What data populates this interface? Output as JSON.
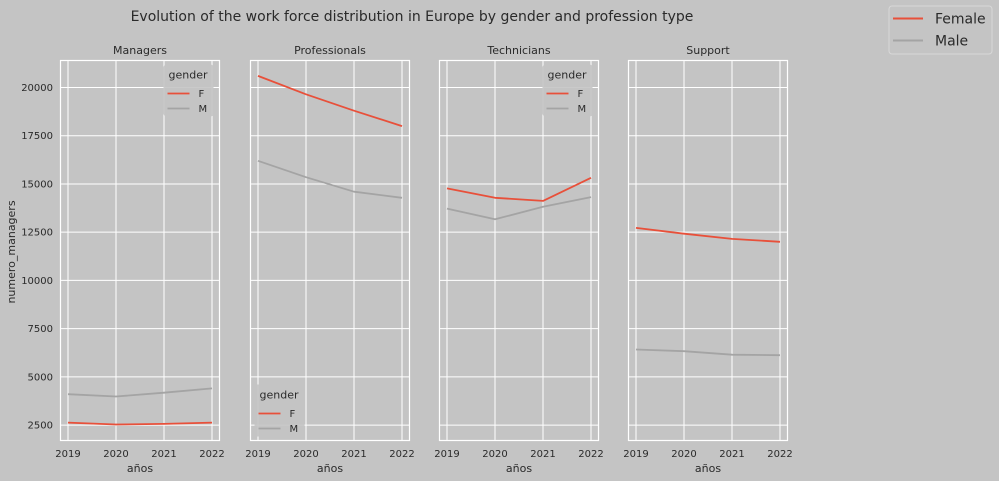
{
  "figure": {
    "title": "Evolution of the work force distribution in Europe by gender and profession type"
  },
  "colors": {
    "female": "#e8503a",
    "male": "#a4a4a4",
    "panel_bg": "#c4c4c4",
    "grid": "#ffffff"
  },
  "legend": {
    "entries": [
      {
        "label": "Female",
        "color": "#e8503a"
      },
      {
        "label": "Male",
        "color": "#a4a4a4"
      }
    ]
  },
  "chart_data": {
    "type": "line",
    "x": [
      2019,
      2020,
      2021,
      2022
    ],
    "xlabel": "años",
    "ylabel": "numero_managers",
    "ylim": [
      1700,
      21400
    ],
    "yticks": [
      2500,
      5000,
      7500,
      10000,
      12500,
      15000,
      17500,
      20000
    ],
    "xticks": [
      2019,
      2020,
      2021,
      2022
    ],
    "grid": true,
    "shared_y": true,
    "panels": [
      {
        "title": "Managers",
        "legend_title": "gender",
        "legend_placement": "top-right",
        "series": [
          {
            "name": "F",
            "color": "#e8503a",
            "values": [
              2630,
              2530,
              2560,
              2630
            ]
          },
          {
            "name": "M",
            "color": "#a4a4a4",
            "values": [
              4100,
              3980,
              4180,
              4400
            ]
          }
        ]
      },
      {
        "title": "Professionals",
        "legend_title": "gender",
        "legend_placement": "bottom-left",
        "series": [
          {
            "name": "F",
            "color": "#e8503a",
            "values": [
              20600,
              19650,
              18800,
              18000
            ]
          },
          {
            "name": "M",
            "color": "#a4a4a4",
            "values": [
              16200,
              15350,
              14600,
              14280
            ]
          }
        ]
      },
      {
        "title": "Technicians",
        "legend_title": "gender",
        "legend_placement": "top-right",
        "series": [
          {
            "name": "F",
            "color": "#e8503a",
            "values": [
              14770,
              14280,
              14120,
              15320
            ]
          },
          {
            "name": "M",
            "color": "#a4a4a4",
            "values": [
              13720,
              13170,
              13820,
              14320
            ]
          }
        ]
      },
      {
        "title": "Support",
        "legend_title": "",
        "legend_placement": "",
        "series": [
          {
            "name": "F",
            "color": "#e8503a",
            "values": [
              12720,
              12420,
              12150,
              12000
            ]
          },
          {
            "name": "M",
            "color": "#a4a4a4",
            "values": [
              6420,
              6330,
              6150,
              6120
            ]
          }
        ]
      }
    ]
  }
}
